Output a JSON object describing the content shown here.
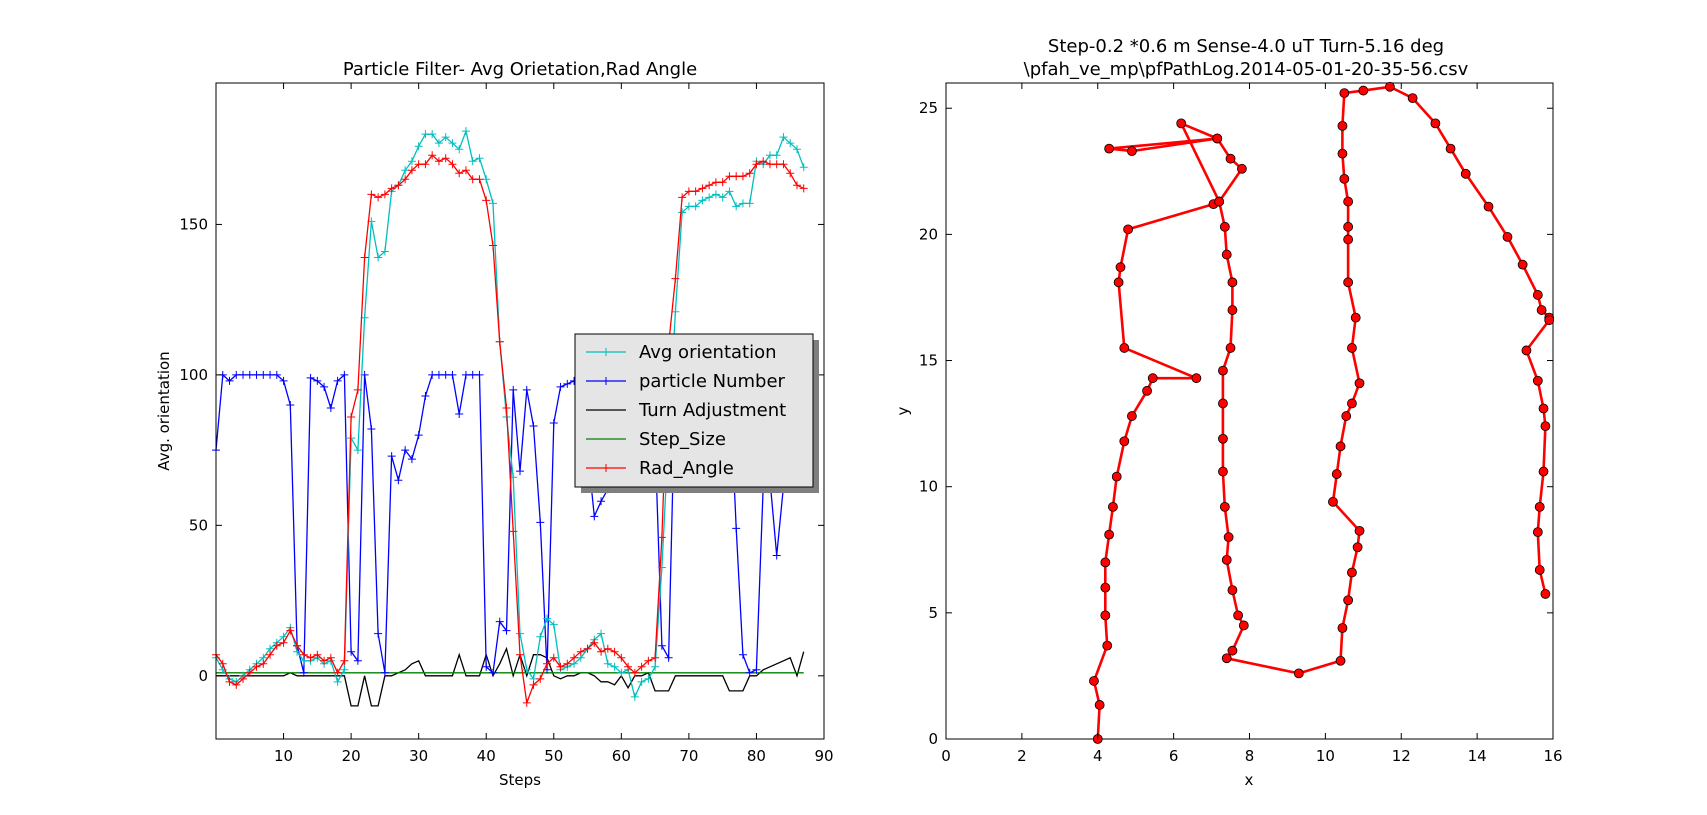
{
  "chart_data": [
    {
      "type": "line",
      "title": "Particle Filter- Avg Orietation,Rad Angle",
      "xlabel": "Steps",
      "ylabel": "Avg. orientation",
      "xlim": [
        0,
        90
      ],
      "ylim": [
        -21,
        197
      ],
      "xticks": [
        10,
        20,
        30,
        40,
        50,
        60,
        70,
        80,
        90
      ],
      "yticks": [
        0,
        50,
        100,
        150
      ],
      "grid": false,
      "legend": "center-right",
      "colors": {
        "Avg orientation": "#00bfbf",
        "particle Number": "#0000ff",
        "Turn Adjustment": "#000000",
        "Step_Size": "#008000",
        "Rad_Angle": "#ff0000"
      },
      "x": [
        0,
        1,
        2,
        3,
        4,
        5,
        6,
        7,
        8,
        9,
        10,
        11,
        12,
        13,
        14,
        15,
        16,
        17,
        18,
        19,
        20,
        21,
        22,
        23,
        24,
        25,
        26,
        27,
        28,
        29,
        30,
        31,
        32,
        33,
        34,
        35,
        36,
        37,
        38,
        39,
        40,
        41,
        42,
        43,
        44,
        45,
        46,
        47,
        48,
        49,
        50,
        51,
        52,
        53,
        54,
        55,
        56,
        57,
        58,
        59,
        60,
        61,
        62,
        63,
        64,
        65,
        66,
        67,
        68,
        69,
        70,
        71,
        72,
        73,
        74,
        75,
        76,
        77,
        78,
        79,
        80,
        81,
        82,
        83,
        84,
        85,
        86,
        87
      ],
      "series": [
        {
          "name": "Avg orientation",
          "marker": "+",
          "values": [
            6,
            2,
            -1,
            -2,
            0,
            2,
            4,
            6,
            9,
            11,
            13,
            16,
            8,
            5,
            5,
            6,
            4,
            5,
            -2,
            2,
            79,
            75,
            119,
            151,
            139,
            141,
            161,
            163,
            168,
            171,
            176,
            180,
            180,
            177,
            179,
            177,
            175,
            181,
            171,
            172,
            165,
            157,
            111,
            86,
            66,
            14,
            2,
            -1,
            13,
            19,
            17,
            2,
            3,
            4,
            6,
            9,
            12,
            14,
            4,
            3,
            1,
            2,
            -7,
            -2,
            -1,
            3,
            36,
            80,
            121,
            154,
            156,
            156,
            158,
            159,
            160,
            159,
            161,
            156,
            157,
            157,
            171,
            170,
            173,
            173,
            179,
            177,
            175,
            169
          ]
        },
        {
          "name": "particle Number",
          "marker": "+",
          "values": [
            75,
            100,
            98,
            100,
            100,
            100,
            100,
            100,
            100,
            100,
            98,
            90,
            10,
            1,
            99,
            98,
            96,
            89,
            98,
            100,
            8,
            5,
            100,
            82,
            14,
            1,
            73,
            65,
            75,
            72,
            80,
            93,
            100,
            100,
            100,
            100,
            87,
            100,
            100,
            100,
            3,
            1,
            18,
            15,
            95,
            68,
            95,
            83,
            51,
            2,
            84,
            96,
            97,
            98,
            99,
            75,
            53,
            58,
            62,
            65,
            67,
            70,
            72,
            74,
            76,
            78,
            10,
            6,
            100,
            100,
            100,
            100,
            100,
            100,
            100,
            100,
            100,
            49,
            7,
            1,
            2,
            63,
            65,
            40,
            63,
            63,
            63,
            63
          ]
        },
        {
          "name": "Turn Adjustment",
          "marker": "none",
          "values": [
            0,
            0,
            0,
            0,
            0,
            0,
            0,
            0,
            0,
            0,
            0,
            1,
            0,
            0,
            0,
            0,
            0,
            0,
            0,
            0,
            -10,
            -10,
            0,
            -10,
            -10,
            0,
            0,
            1,
            2,
            4,
            5,
            0,
            0,
            0,
            0,
            0,
            7,
            0,
            0,
            0,
            7,
            0,
            4,
            9,
            0,
            7,
            0,
            7,
            7,
            6,
            0,
            -1,
            0,
            0,
            1,
            1,
            0,
            -2,
            -2,
            -3,
            0,
            -4,
            0,
            0,
            1,
            -5,
            -5,
            -5,
            0,
            0,
            0,
            0,
            0,
            0,
            0,
            0,
            -5,
            -5,
            -5,
            0,
            0,
            2,
            3,
            4,
            5,
            6,
            0,
            8
          ]
        },
        {
          "name": "Step_Size",
          "marker": "none",
          "values": [
            1,
            1,
            1,
            1,
            1,
            1,
            1,
            1,
            1,
            1,
            1,
            1,
            1,
            1,
            1,
            1,
            1,
            1,
            1,
            1,
            1,
            1,
            1,
            1,
            1,
            1,
            1,
            1,
            1,
            1,
            1,
            1,
            1,
            1,
            1,
            1,
            1,
            1,
            1,
            1,
            1,
            1,
            1,
            1,
            1,
            1,
            1,
            1,
            1,
            1,
            1,
            1,
            1,
            1,
            1,
            1,
            1,
            1,
            1,
            1,
            1,
            1,
            1,
            1,
            1,
            1,
            1,
            1,
            1,
            1,
            1,
            1,
            1,
            1,
            1,
            1,
            1,
            1,
            1,
            1,
            1,
            1,
            1,
            1,
            1,
            1,
            1,
            1
          ]
        },
        {
          "name": "Rad_Angle",
          "marker": "+",
          "values": [
            7,
            4,
            -2,
            -3,
            -1,
            1,
            3,
            4,
            7,
            10,
            11,
            15,
            10,
            7,
            6,
            7,
            5,
            6,
            1,
            5,
            86,
            95,
            139,
            160,
            159,
            160,
            162,
            163,
            165,
            168,
            170,
            170,
            173,
            171,
            172,
            170,
            167,
            168,
            165,
            165,
            158,
            143,
            111,
            89,
            48,
            7,
            -9,
            -3,
            -1,
            4,
            6,
            3,
            4,
            6,
            8,
            9,
            11,
            8,
            9,
            8,
            6,
            3,
            1,
            3,
            5,
            6,
            46,
            110,
            132,
            159,
            161,
            161,
            162,
            163,
            164,
            164,
            166,
            166,
            166,
            167,
            170,
            171,
            170,
            170,
            170,
            167,
            163,
            162
          ]
        }
      ]
    },
    {
      "type": "line",
      "title": "Step-0.2 *0.6 m  Sense-4.0 uT Turn-5.16 deg",
      "subtitle": "\\pfah_ve_mp\\pfPathLog.2014-05-01-20-35-56.csv",
      "xlabel": "x",
      "ylabel": "y",
      "xlim": [
        0,
        16
      ],
      "ylim": [
        0,
        26
      ],
      "xticks": [
        0,
        2,
        4,
        6,
        8,
        10,
        12,
        14,
        16
      ],
      "yticks": [
        0,
        5,
        10,
        15,
        20,
        25
      ],
      "grid": false,
      "colors": {
        "path": "#ff0000"
      },
      "series": [
        {
          "marker": "o",
          "points": [
            [
              4.0,
              0.0
            ],
            [
              4.05,
              1.35
            ],
            [
              3.9,
              2.3
            ],
            [
              4.25,
              3.7
            ],
            [
              4.2,
              4.9
            ],
            [
              4.2,
              6.0
            ],
            [
              4.2,
              7.0
            ],
            [
              4.3,
              8.1
            ],
            [
              4.4,
              9.2
            ],
            [
              4.5,
              10.4
            ],
            [
              4.7,
              11.8
            ],
            [
              4.9,
              12.8
            ],
            [
              5.3,
              13.8
            ],
            [
              5.45,
              14.3
            ],
            [
              6.6,
              14.3
            ],
            [
              4.7,
              15.5
            ],
            [
              4.55,
              18.1
            ],
            [
              4.6,
              18.7
            ],
            [
              4.8,
              20.2
            ],
            [
              7.05,
              21.2
            ],
            [
              7.2,
              21.3
            ],
            [
              6.2,
              24.4
            ],
            [
              7.15,
              23.8
            ],
            [
              4.9,
              23.3
            ],
            [
              4.3,
              23.4
            ],
            [
              7.15,
              23.8
            ],
            [
              7.5,
              23.0
            ],
            [
              7.8,
              22.6
            ],
            [
              7.2,
              21.3
            ],
            [
              7.35,
              20.3
            ],
            [
              7.4,
              19.2
            ],
            [
              7.55,
              18.1
            ],
            [
              7.55,
              17.0
            ],
            [
              7.5,
              15.5
            ],
            [
              7.3,
              14.6
            ],
            [
              7.3,
              13.3
            ],
            [
              7.3,
              11.9
            ],
            [
              7.3,
              10.6
            ],
            [
              7.35,
              9.2
            ],
            [
              7.45,
              8.0
            ],
            [
              7.4,
              7.1
            ],
            [
              7.55,
              5.9
            ],
            [
              7.7,
              4.9
            ],
            [
              7.85,
              4.5
            ],
            [
              7.55,
              3.5
            ],
            [
              7.4,
              3.2
            ],
            [
              9.3,
              2.6
            ],
            [
              10.4,
              3.1
            ],
            [
              10.45,
              4.4
            ],
            [
              10.6,
              5.5
            ],
            [
              10.7,
              6.6
            ],
            [
              10.85,
              7.6
            ],
            [
              10.9,
              8.25
            ],
            [
              10.2,
              9.4
            ],
            [
              10.3,
              10.5
            ],
            [
              10.4,
              11.6
            ],
            [
              10.55,
              12.8
            ],
            [
              10.7,
              13.3
            ],
            [
              10.9,
              14.1
            ],
            [
              10.7,
              15.5
            ],
            [
              10.8,
              16.7
            ],
            [
              10.6,
              18.1
            ],
            [
              10.6,
              19.8
            ],
            [
              10.6,
              20.3
            ],
            [
              10.6,
              21.3
            ],
            [
              10.5,
              22.2
            ],
            [
              10.45,
              23.2
            ],
            [
              10.45,
              24.3
            ],
            [
              10.5,
              25.6
            ],
            [
              11.0,
              25.7
            ],
            [
              11.7,
              25.85
            ],
            [
              12.3,
              25.4
            ],
            [
              12.9,
              24.4
            ],
            [
              13.3,
              23.4
            ],
            [
              13.7,
              22.4
            ],
            [
              14.3,
              21.1
            ],
            [
              14.8,
              19.9
            ],
            [
              15.2,
              18.8
            ],
            [
              15.6,
              17.6
            ],
            [
              15.7,
              17.0
            ],
            [
              15.9,
              16.7
            ],
            [
              15.9,
              16.6
            ],
            [
              15.3,
              15.4
            ],
            [
              15.6,
              14.2
            ],
            [
              15.75,
              13.1
            ],
            [
              15.8,
              12.4
            ],
            [
              15.75,
              10.6
            ],
            [
              15.65,
              9.2
            ],
            [
              15.6,
              8.2
            ],
            [
              15.65,
              6.7
            ],
            [
              15.8,
              5.75
            ]
          ]
        }
      ]
    }
  ]
}
